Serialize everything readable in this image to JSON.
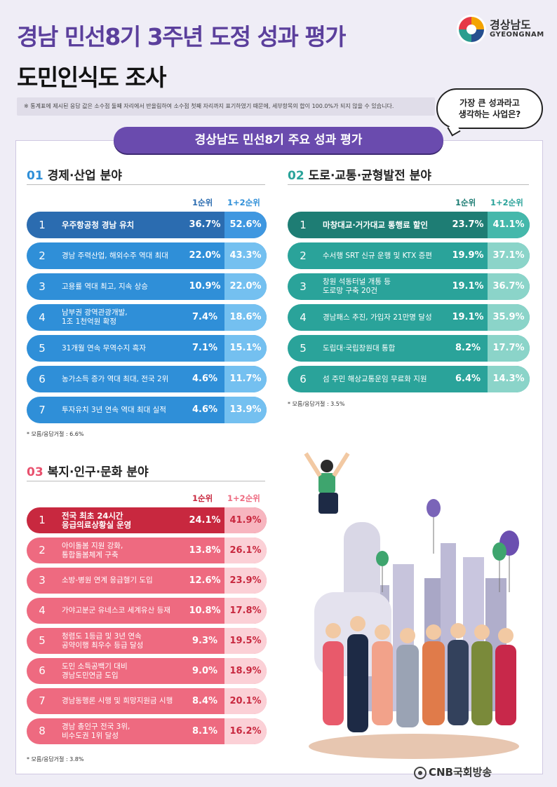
{
  "header": {
    "title_line1": "경남 민선8기 3주년 도정 성과 평가",
    "title_line2": "도민인식도 조사",
    "logo_ko": "경상남도",
    "logo_en": "GYEONGNAM",
    "note": "※ 통계표에 제시된 응답 값은 소수점 둘째 자리에서 반올림하여 소수점 첫째 자리까지 표기하였기 때문에, 세부항목의 합이 100.0%가 되지 않을 수 있습니다.",
    "bubble_line1": "가장 큰 성과라고",
    "bubble_line2": "생각하는 사업은?"
  },
  "banner": "경상남도 민선8기 주요 성과 평가",
  "colors": {
    "blue_dark": "#2b6cb0",
    "blue": "#2f8fd8",
    "teal_dark": "#1e7d74",
    "teal": "#2aa39a",
    "red_dark": "#c8283f",
    "red": "#ee6a80"
  },
  "labels": {
    "col1": "1순위",
    "col2": "1+2순위"
  },
  "chart_data": [
    {
      "type": "table",
      "section_num": "01",
      "title": "경제·산업 분야",
      "columns": [
        "1순위",
        "1+2순위"
      ],
      "rows": [
        {
          "rank": "1",
          "lines": [
            "우주항공청 경남 유치"
          ],
          "first": "36.7%",
          "total": "52.6%"
        },
        {
          "rank": "2",
          "lines": [
            "경남 주력산업, 해외수주 역대 최대"
          ],
          "first": "22.0%",
          "total": "43.3%"
        },
        {
          "rank": "3",
          "lines": [
            "고용률 역대 최고, 지속 상승"
          ],
          "first": "10.9%",
          "total": "22.0%"
        },
        {
          "rank": "4",
          "lines": [
            "남부권 광역관광개발,",
            "1조 1천억원 확정"
          ],
          "first": "7.4%",
          "total": "18.6%"
        },
        {
          "rank": "5",
          "lines": [
            "31개월 연속 무역수지 흑자"
          ],
          "first": "7.1%",
          "total": "15.1%"
        },
        {
          "rank": "6",
          "lines": [
            "농가소득 증가 역대 최대, 전국 2위"
          ],
          "first": "4.6%",
          "total": "11.7%"
        },
        {
          "rank": "7",
          "lines": [
            "투자유치 3년 연속 역대 최대 실적"
          ],
          "first": "4.6%",
          "total": "13.9%"
        }
      ],
      "footnote": "* 모름/응답거절 : 6.6%"
    },
    {
      "type": "table",
      "section_num": "02",
      "title": "도로·교통·균형발전 분야",
      "columns": [
        "1순위",
        "1+2순위"
      ],
      "rows": [
        {
          "rank": "1",
          "lines": [
            "마창대교·거가대교 통행료 할인"
          ],
          "first": "23.7%",
          "total": "41.1%"
        },
        {
          "rank": "2",
          "lines": [
            "수서행 SRT 신규 운행 및 KTX 증편"
          ],
          "first": "19.9%",
          "total": "37.1%"
        },
        {
          "rank": "3",
          "lines": [
            "창원 석동터널 개통 등",
            "도로망 구축 20건"
          ],
          "first": "19.1%",
          "total": "36.7%"
        },
        {
          "rank": "4",
          "lines": [
            "경남패스 추진, 가입자 21만명 달성"
          ],
          "first": "19.1%",
          "total": "35.9%"
        },
        {
          "rank": "5",
          "lines": [
            "도립대·국립창원대 통합"
          ],
          "first": "8.2%",
          "total": "17.7%"
        },
        {
          "rank": "6",
          "lines": [
            "섬 주민 해상교통운임 무료화 지원"
          ],
          "first": "6.4%",
          "total": "14.3%"
        }
      ],
      "footnote": "* 모름/응답거절 : 3.5%"
    },
    {
      "type": "table",
      "section_num": "03",
      "title": "복지·인구·문화 분야",
      "columns": [
        "1순위",
        "1+2순위"
      ],
      "rows": [
        {
          "rank": "1",
          "lines": [
            "전국 최초 24시간",
            "응급의료상황실 운영"
          ],
          "first": "24.1%",
          "total": "41.9%"
        },
        {
          "rank": "2",
          "lines": [
            "아이돌봄 지원 강화,",
            "통합돌봄체계 구축"
          ],
          "first": "13.8%",
          "total": "26.1%"
        },
        {
          "rank": "3",
          "lines": [
            "소방-병원 연계 응급헬기 도입"
          ],
          "first": "12.6%",
          "total": "23.9%"
        },
        {
          "rank": "4",
          "lines": [
            "가야고분군 유네스코 세계유산 등재"
          ],
          "first": "10.8%",
          "total": "17.8%"
        },
        {
          "rank": "5",
          "lines": [
            "청렴도 1등급 및 3년 연속",
            "공약이행 최우수 등급 달성"
          ],
          "first": "9.3%",
          "total": "19.5%"
        },
        {
          "rank": "6",
          "lines": [
            "도민 소득공백기 대비",
            "경남도민연금 도입"
          ],
          "first": "9.0%",
          "total": "18.9%"
        },
        {
          "rank": "7",
          "lines": [
            "경남동행론 시행 및 희망지원금 시행"
          ],
          "first": "8.4%",
          "total": "20.1%"
        },
        {
          "rank": "8",
          "lines": [
            "경남 총인구 전국 3위,",
            "비수도권 1위 달성"
          ],
          "first": "8.1%",
          "total": "16.2%"
        }
      ],
      "footnote": "* 모름/응답거절 : 3.8%"
    }
  ],
  "footer": {
    "brand": "CNB국회방송"
  }
}
